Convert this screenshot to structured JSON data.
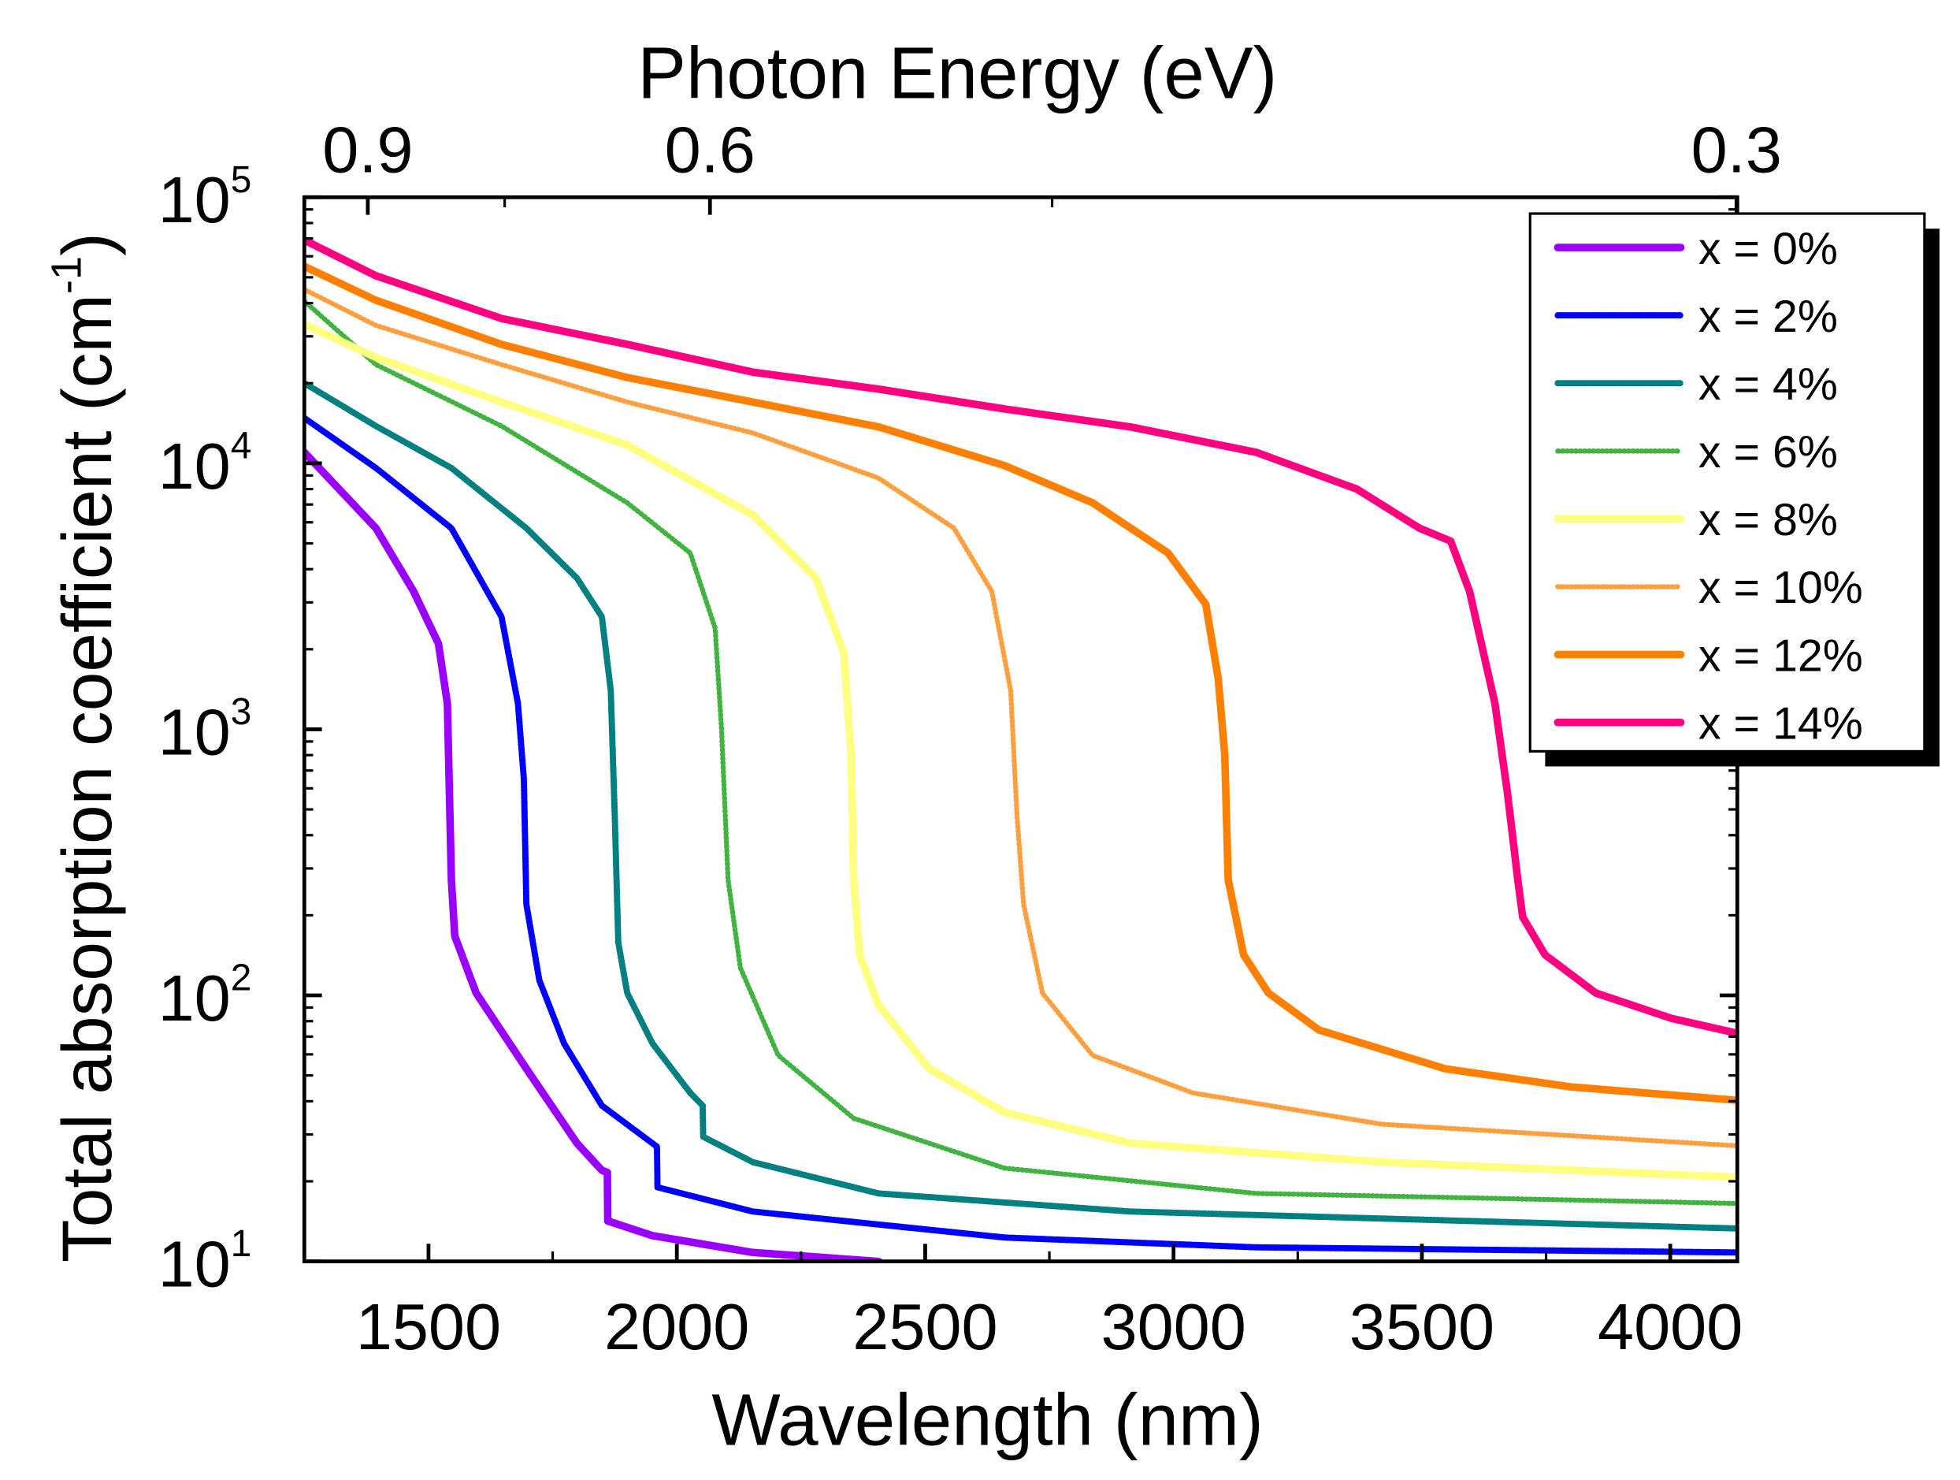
{
  "chart_data": {
    "type": "line",
    "title": "",
    "xlabel": "Wavelength (nm)",
    "ylabel": "Total absorption coefficient (cm",
    "ylabel_sup": "-1",
    "ylabel_close": ")",
    "top_xlabel": "Photon Energy (eV)",
    "xlim": [
      1250,
      4135
    ],
    "ylim": [
      10,
      100000
    ],
    "yscale": "log",
    "x_ticks": [
      1500,
      2000,
      2500,
      3000,
      3500,
      4000
    ],
    "x_tick_labels": [
      "1500",
      "2000",
      "2500",
      "3000",
      "3500",
      "4000"
    ],
    "y_ticks": [
      10,
      100,
      1000,
      10000,
      100000
    ],
    "y_tick_bases": [
      "10",
      "10",
      "10",
      "10",
      "10"
    ],
    "y_tick_exponents": [
      "1",
      "2",
      "3",
      "4",
      "5"
    ],
    "top_ticks": [
      0.9,
      0.6,
      0.3
    ],
    "top_tick_labels": [
      "0.9",
      "0.6",
      "0.3"
    ],
    "legend_position": "top-right",
    "grid": false,
    "series": [
      {
        "name": "x = 0%",
        "color": "#9900FF",
        "style": "solid",
        "x": [
          1250,
          1394,
          1470,
          1520,
          1538,
          1546,
          1553,
          1596,
          1697,
          1799,
          1849,
          1860,
          1861,
          1951,
          2153,
          2406
        ],
        "y": [
          11000,
          5700,
          3300,
          2100,
          1250,
          272,
          167,
          102,
          53,
          27.8,
          22,
          21.6,
          14.2,
          12.5,
          10.8,
          10
        ]
      },
      {
        "name": "x = 2%",
        "color": "#0000FF",
        "style": "hatched",
        "x": [
          1250,
          1394,
          1546,
          1647,
          1680,
          1692,
          1697,
          1723,
          1773,
          1849,
          1951,
          1960,
          1961,
          2153,
          2660,
          3166,
          4135
        ],
        "y": [
          14800,
          9600,
          5700,
          2650,
          1250,
          650,
          220,
          114,
          66,
          38.5,
          27.8,
          27,
          19,
          15.4,
          12.3,
          11.3,
          10.8
        ]
      },
      {
        "name": "x = 4%",
        "color": "#008080",
        "style": "hatched",
        "x": [
          1250,
          1394,
          1546,
          1697,
          1799,
          1849,
          1867,
          1875,
          1882,
          1900,
          1951,
          2027,
          2052,
          2053,
          2153,
          2406,
          2913,
          4135
        ],
        "y": [
          20000,
          13800,
          9600,
          5700,
          3700,
          2650,
          1400,
          470,
          158,
          102,
          66,
          43,
          38.5,
          29.4,
          23.6,
          18,
          15.4,
          13.3
        ]
      },
      {
        "name": "x = 6%",
        "color": "#009900",
        "style": "dotted",
        "x": [
          1250,
          1394,
          1647,
          1900,
          2027,
          2077,
          2090,
          2103,
          2128,
          2204,
          2356,
          2660,
          3166,
          4135
        ],
        "y": [
          40700,
          23500,
          13800,
          7100,
          4600,
          2400,
          1000,
          272,
          127,
          59.5,
          34.5,
          22.4,
          18,
          16.5
        ]
      },
      {
        "name": "x = 8%",
        "color": "#FFFF80",
        "style": "solid",
        "x": [
          1250,
          1394,
          1647,
          1900,
          2153,
          2280,
          2336,
          2351,
          2356,
          2368,
          2406,
          2508,
          2660,
          2913,
          3419,
          4135
        ],
        "y": [
          33300,
          25000,
          17000,
          11700,
          6400,
          3700,
          1940,
          800,
          272,
          142,
          92,
          53,
          36.3,
          27.8,
          23.6,
          20.7
        ]
      },
      {
        "name": "x = 10%",
        "color": "#FF8000",
        "style": "dotted",
        "x": [
          1250,
          1394,
          1647,
          1900,
          2153,
          2406,
          2558,
          2634,
          2672,
          2685,
          2698,
          2736,
          2837,
          3039,
          3419,
          4135
        ],
        "y": [
          45000,
          33000,
          23500,
          17000,
          13000,
          8800,
          5700,
          3300,
          1400,
          470,
          220,
          102,
          59.5,
          43,
          32.8,
          27.2
        ]
      },
      {
        "name": "x = 12%",
        "color": "#FF8000",
        "style": "solid",
        "x": [
          1250,
          1394,
          1647,
          1900,
          2153,
          2406,
          2660,
          2837,
          2989,
          3065,
          3090,
          3103,
          3110,
          3141,
          3191,
          3293,
          3546,
          3799,
          4135
        ],
        "y": [
          55000,
          41000,
          28000,
          21000,
          17000,
          13700,
          9800,
          7100,
          4600,
          2950,
          1550,
          800,
          272,
          142,
          102,
          74,
          53,
          45.3,
          40.3
        ]
      },
      {
        "name": "x = 14%",
        "color": "#FF0080",
        "style": "solid",
        "x": [
          1250,
          1394,
          1647,
          1900,
          2153,
          2406,
          2660,
          2913,
          3166,
          3369,
          3495,
          3558,
          3596,
          3647,
          3672,
          3693,
          3703,
          3748,
          3850,
          4002,
          4135
        ],
        "y": [
          69000,
          50700,
          35000,
          28000,
          22000,
          19000,
          16000,
          13700,
          11000,
          8000,
          5700,
          5100,
          3300,
          1250,
          580,
          272,
          197,
          142,
          102,
          82,
          72
        ]
      }
    ]
  }
}
